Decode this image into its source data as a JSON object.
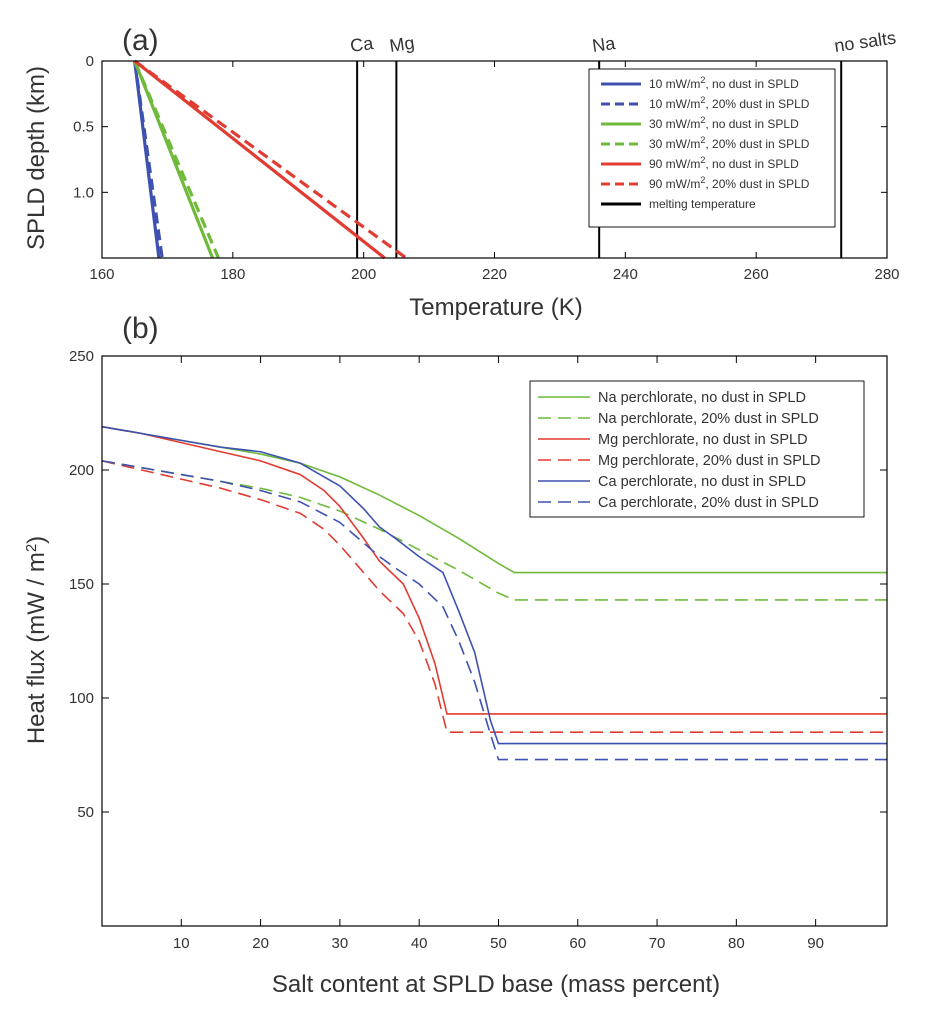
{
  "chart_data": [
    {
      "panel_label": "(a)",
      "type": "line",
      "xlabel": "Temperature (K)",
      "ylabel": "SPLD depth (km)",
      "xlim": [
        160,
        280
      ],
      "ylim": [
        0,
        1.5
      ],
      "y_reversed": true,
      "xticks": [
        160,
        180,
        200,
        220,
        240,
        260,
        280
      ],
      "yticks": [
        0,
        0.5,
        1.0
      ],
      "ytick_labels": [
        "0",
        "0.5",
        "1.0"
      ],
      "legend_position": "top-right",
      "series": [
        {
          "name": "10 mW/m",
          "superscript": "2",
          "suffix": ", no dust in SPLD",
          "color": "#3f51b0",
          "dash": "solid",
          "x": [
            165,
            168.7
          ],
          "y": [
            0,
            1.5
          ]
        },
        {
          "name": "10 mW/m",
          "superscript": "2",
          "suffix": ", 20% dust in SPLD",
          "color": "#3f51b0",
          "dash": "dashed",
          "x": [
            165,
            169.2
          ],
          "y": [
            0,
            1.5
          ]
        },
        {
          "name": "30 mW/m",
          "superscript": "2",
          "suffix": ", no dust in SPLD",
          "color": "#6fba3b",
          "dash": "solid",
          "x": [
            165,
            176.9
          ],
          "y": [
            0,
            1.5
          ]
        },
        {
          "name": "30 mW/m",
          "superscript": "2",
          "suffix": ", 20% dust in SPLD",
          "color": "#6fba3b",
          "dash": "dashed",
          "x": [
            165,
            177.8
          ],
          "y": [
            0,
            1.5
          ]
        },
        {
          "name": "90 mW/m",
          "superscript": "2",
          "suffix": ", no dust in SPLD",
          "color": "#e03c31",
          "dash": "solid",
          "x": [
            165,
            203.2
          ],
          "y": [
            0,
            1.5
          ]
        },
        {
          "name": "90 mW/m",
          "superscript": "2",
          "suffix": ", 20% dust in SPLD",
          "color": "#e03c31",
          "dash": "dashed",
          "x": [
            165,
            206.5
          ],
          "y": [
            0,
            1.5
          ]
        }
      ],
      "melting_lines": [
        {
          "label": "Ca",
          "x": 199
        },
        {
          "label": "Mg",
          "x": 205
        },
        {
          "label": "Na",
          "x": 236
        },
        {
          "label": "no salts",
          "x": 273
        }
      ],
      "melting_legend": "melting temperature",
      "melting_color": "#000000"
    },
    {
      "panel_label": "(b)",
      "type": "line",
      "xlabel": "Salt content at SPLD base (mass percent)",
      "ylabel": "Heat flux (mW / m",
      "ylabel_superscript": "2",
      "ylabel_suffix": ")",
      "xlim": [
        0,
        99
      ],
      "ylim": [
        0,
        250
      ],
      "xticks": [
        10,
        20,
        30,
        40,
        50,
        60,
        70,
        80,
        90
      ],
      "yticks": [
        50,
        100,
        150,
        200,
        250
      ],
      "legend_position": "top-right",
      "series": [
        {
          "name": "Na perchlorate, no dust in SPLD",
          "color": "#6fba3b",
          "dash": "solid",
          "x": [
            0,
            5,
            10,
            15,
            20,
            25,
            30,
            35,
            40,
            45,
            50,
            52,
            60,
            70,
            80,
            90,
            99
          ],
          "y": [
            219,
            216,
            213,
            210,
            207,
            203,
            197,
            189,
            180,
            170,
            159,
            155,
            155,
            155,
            155,
            155,
            155
          ]
        },
        {
          "name": "Na perchlorate, 20% dust in SPLD",
          "color": "#6fba3b",
          "dash": "dashed",
          "x": [
            0,
            5,
            10,
            15,
            20,
            25,
            30,
            35,
            40,
            45,
            50,
            52,
            60,
            70,
            80,
            90,
            99
          ],
          "y": [
            204,
            201,
            198,
            195,
            192,
            188,
            182,
            174,
            165,
            156,
            146,
            143,
            143,
            143,
            143,
            143,
            143
          ]
        },
        {
          "name": "Mg perchlorate, no dust in SPLD",
          "color": "#e03c31",
          "dash": "solid",
          "x": [
            0,
            5,
            10,
            15,
            20,
            25,
            28,
            30,
            33,
            35,
            38,
            40,
            42,
            43.5,
            50,
            60,
            70,
            80,
            90,
            99
          ],
          "y": [
            219,
            216,
            212,
            208,
            204,
            198,
            191,
            184,
            170,
            160,
            150,
            135,
            115,
            93,
            93,
            93,
            93,
            93,
            93,
            93
          ]
        },
        {
          "name": "Mg perchlorate, 20% dust in SPLD",
          "color": "#e03c31",
          "dash": "dashed",
          "x": [
            0,
            5,
            10,
            15,
            20,
            25,
            28,
            30,
            33,
            35,
            38,
            40,
            42,
            43.5,
            50,
            60,
            70,
            80,
            90,
            99
          ],
          "y": [
            204,
            200,
            196,
            192,
            187,
            181,
            174,
            167,
            155,
            147,
            137,
            125,
            106,
            85,
            85,
            85,
            85,
            85,
            85,
            85
          ]
        },
        {
          "name": "Ca perchlorate, no dust in SPLD",
          "color": "#3f51b0",
          "dash": "solid",
          "x": [
            0,
            5,
            10,
            15,
            20,
            25,
            30,
            33,
            35,
            37,
            40,
            43,
            45,
            47,
            49,
            50,
            60,
            70,
            80,
            90,
            99
          ],
          "y": [
            219,
            216,
            213,
            210,
            208,
            203,
            193,
            183,
            175,
            170,
            162,
            155,
            138,
            120,
            90,
            80,
            80,
            80,
            80,
            80,
            80
          ]
        },
        {
          "name": "Ca perchlorate, 20% dust in SPLD",
          "color": "#3f51b0",
          "dash": "dashed",
          "x": [
            0,
            5,
            10,
            15,
            20,
            25,
            30,
            33,
            35,
            37,
            40,
            43,
            45,
            47,
            49,
            50,
            60,
            70,
            80,
            90,
            99
          ],
          "y": [
            204,
            201,
            198,
            195,
            191,
            186,
            177,
            168,
            162,
            157,
            150,
            140,
            125,
            107,
            84,
            73,
            73,
            73,
            73,
            73,
            73
          ]
        }
      ]
    }
  ]
}
